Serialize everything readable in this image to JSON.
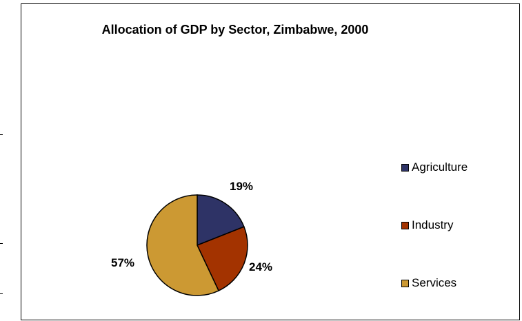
{
  "chart_data": {
    "type": "pie",
    "title": "Allocation of GDP by Sector, Zimbabwe, 2000",
    "categories": [
      "Agriculture",
      "Industry",
      "Services"
    ],
    "values": [
      19,
      24,
      57
    ],
    "labels": [
      "19%",
      "24%",
      "57%"
    ],
    "colors": [
      "#2e3366",
      "#a33300",
      "#cc9933"
    ],
    "legend_position": "right"
  }
}
